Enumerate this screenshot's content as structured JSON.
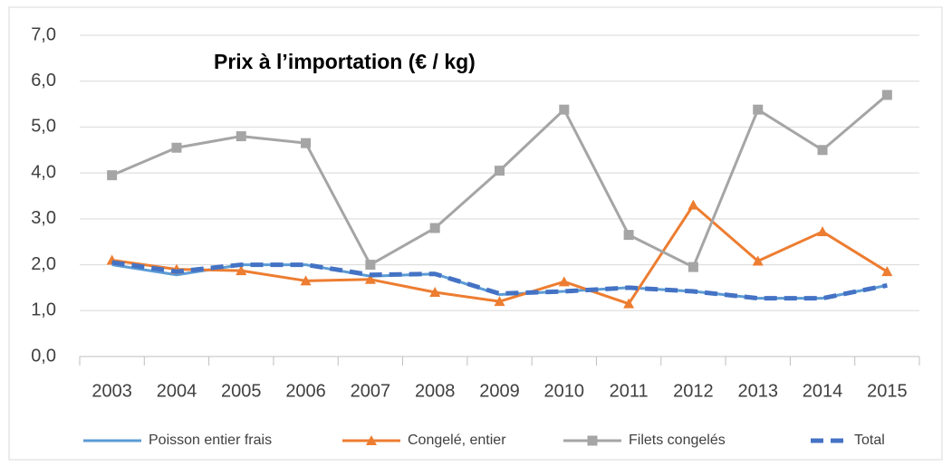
{
  "chart_data": {
    "type": "line",
    "title": "Prix à l’importation (€ / kg)",
    "categories": [
      "2003",
      "2004",
      "2005",
      "2006",
      "2007",
      "2008",
      "2009",
      "2010",
      "2011",
      "2012",
      "2013",
      "2014",
      "2015"
    ],
    "series": [
      {
        "name": "Poisson entier frais",
        "color": "#5b9bd5",
        "marker": "none",
        "dash": false,
        "values": [
          2.0,
          1.78,
          2.0,
          2.0,
          1.75,
          1.8,
          1.35,
          1.42,
          1.5,
          1.42,
          1.27,
          1.27,
          1.55
        ]
      },
      {
        "name": "Congelé, entier",
        "color": "#ed7d31",
        "marker": "triangle",
        "dash": false,
        "values": [
          2.1,
          1.9,
          1.87,
          1.65,
          1.68,
          1.4,
          1.2,
          1.63,
          1.15,
          3.3,
          2.08,
          2.72,
          1.85
        ]
      },
      {
        "name": "Filets congelés",
        "color": "#a5a5a5",
        "marker": "square",
        "dash": false,
        "values": [
          3.95,
          4.55,
          4.8,
          4.65,
          2.0,
          2.8,
          4.05,
          5.38,
          2.65,
          1.95,
          5.38,
          4.5,
          5.7
        ]
      },
      {
        "name": "Total",
        "color": "#4472c4",
        "marker": "none",
        "dash": true,
        "values": [
          2.05,
          1.85,
          2.0,
          2.0,
          1.78,
          1.8,
          1.37,
          1.42,
          1.5,
          1.42,
          1.27,
          1.27,
          1.55
        ]
      }
    ],
    "ylim": [
      0,
      7
    ],
    "yticks": [
      {
        "value": 0,
        "label": "0,0"
      },
      {
        "value": 1,
        "label": "1,0"
      },
      {
        "value": 2,
        "label": "2,0"
      },
      {
        "value": 3,
        "label": "3,0"
      },
      {
        "value": 4,
        "label": "4,0"
      },
      {
        "value": 5,
        "label": "5,0"
      },
      {
        "value": 6,
        "label": "6,0"
      },
      {
        "value": 7,
        "label": "7,0"
      }
    ],
    "grid": true,
    "legend": "bottom"
  }
}
